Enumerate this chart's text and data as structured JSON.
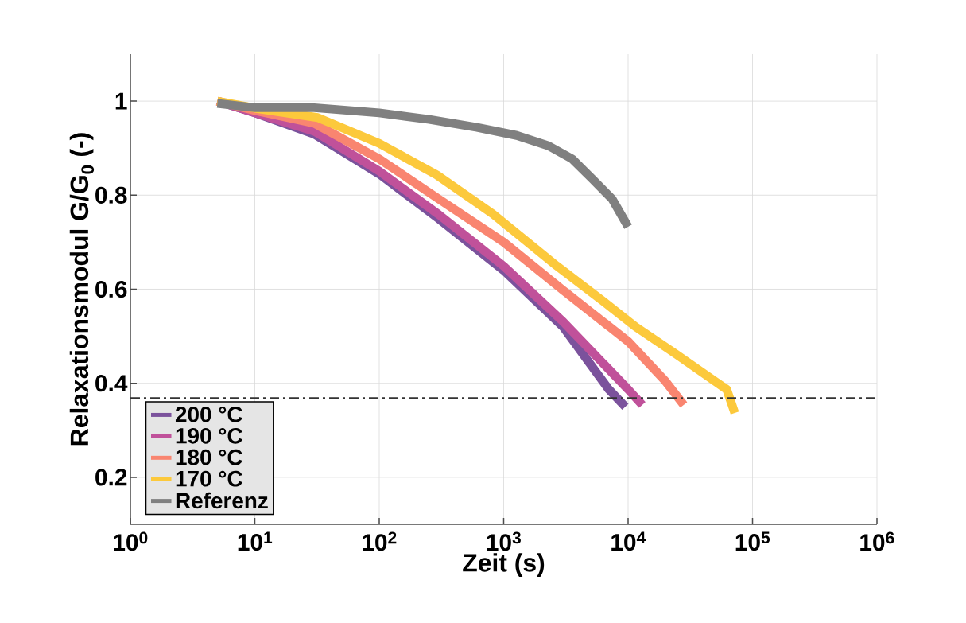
{
  "chart_data": {
    "type": "line",
    "xlabel": "Zeit (s)",
    "ylabel": "Relaxationsmodul G/G$_{0}$ (-)",
    "log": "x",
    "grid": true,
    "legend": "bottom left",
    "line_style": "solid",
    "xlim": [
      1,
      1000000
    ],
    "ylim": [
      0.1,
      1.1
    ],
    "xticks": [
      {
        "value": 1,
        "label": "10$^{0}$"
      },
      {
        "value": 10,
        "label": "10$^{1}$"
      },
      {
        "value": 100,
        "label": "10$^{2}$"
      },
      {
        "value": 1000,
        "label": "10$^{3}$"
      },
      {
        "value": 10000,
        "label": "10$^{4}$"
      },
      {
        "value": 100000,
        "label": "10$^{5}$"
      },
      {
        "value": 1000000,
        "label": "10$^{6}$"
      }
    ],
    "yticks": [
      0.2,
      0.4,
      0.6,
      0.8,
      1
    ],
    "ref_lines": [
      {
        "axis": "y",
        "value": 0.368,
        "color": "#333333",
        "line_style": "dashdot"
      }
    ],
    "series": [
      {
        "name": "200 °C",
        "color": "#7b529c",
        "x": [
          5,
          10,
          30,
          100,
          300,
          1000,
          3000,
          7000,
          9500
        ],
        "values": [
          1.0,
          0.975,
          0.93,
          0.845,
          0.75,
          0.64,
          0.52,
          0.387,
          0.35
        ]
      },
      {
        "name": "190 °C",
        "color": "#c0519a",
        "x": [
          5,
          10,
          30,
          100,
          300,
          1000,
          3000,
          10000,
          13000
        ],
        "values": [
          1.0,
          0.975,
          0.936,
          0.851,
          0.759,
          0.649,
          0.531,
          0.387,
          0.354
        ]
      },
      {
        "name": "180 °C",
        "color": "#f98570",
        "x": [
          5,
          10,
          30,
          100,
          300,
          1000,
          3000,
          10000,
          20000,
          28000
        ],
        "values": [
          1.0,
          0.98,
          0.953,
          0.877,
          0.792,
          0.7,
          0.598,
          0.489,
          0.404,
          0.354
        ]
      },
      {
        "name": "170 °C",
        "color": "#fcc93c",
        "x": [
          5,
          10,
          32,
          100,
          290,
          820,
          2660,
          6400,
          11500,
          24000,
          50000,
          62000,
          72000
        ],
        "values": [
          1.0,
          0.985,
          0.965,
          0.91,
          0.843,
          0.76,
          0.65,
          0.573,
          0.52,
          0.463,
          0.404,
          0.387,
          0.337
        ]
      },
      {
        "name": "Referenz",
        "color": "#808080",
        "x": [
          5,
          10,
          30,
          100,
          253,
          611,
          1274,
          2290,
          3550,
          5140,
          7440,
          10000
        ],
        "values": [
          0.995,
          0.986,
          0.986,
          0.975,
          0.961,
          0.944,
          0.927,
          0.905,
          0.877,
          0.835,
          0.792,
          0.733
        ]
      }
    ]
  }
}
